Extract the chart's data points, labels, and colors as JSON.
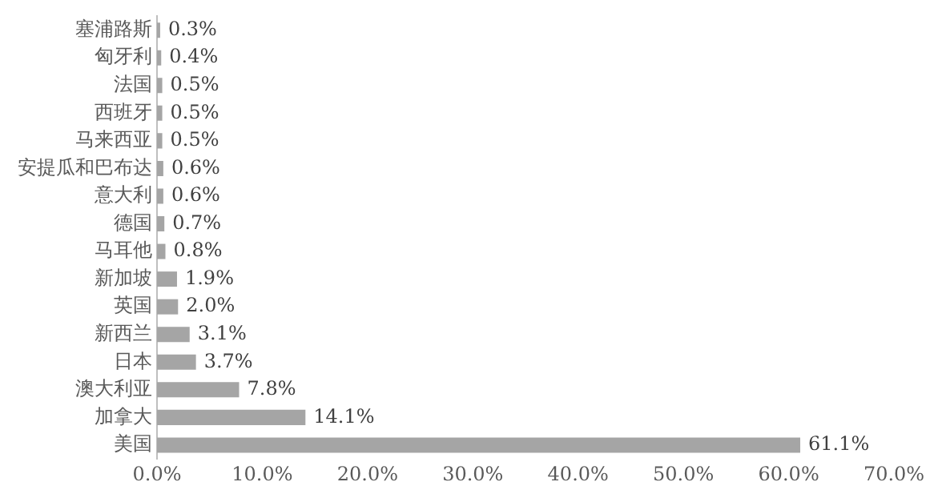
{
  "chart_data": {
    "type": "bar",
    "orientation": "horizontal",
    "categories": [
      "塞浦路斯",
      "匈牙利",
      "法国",
      "西班牙",
      "马来西亚",
      "安提瓜和巴布达",
      "意大利",
      "德国",
      "马耳他",
      "新加坡",
      "英国",
      "新西兰",
      "日本",
      "澳大利亚",
      "加拿大",
      "美国"
    ],
    "values": [
      0.3,
      0.4,
      0.5,
      0.5,
      0.5,
      0.6,
      0.6,
      0.7,
      0.8,
      1.9,
      2.0,
      3.1,
      3.7,
      7.8,
      14.1,
      61.1
    ],
    "value_labels": [
      "0.3%",
      "0.4%",
      "0.5%",
      "0.5%",
      "0.5%",
      "0.6%",
      "0.6%",
      "0.7%",
      "0.8%",
      "1.9%",
      "2.0%",
      "3.1%",
      "3.7%",
      "7.8%",
      "14.1%",
      "61.1%"
    ],
    "color": "#a5a5a5",
    "xlim": [
      0,
      70
    ],
    "xticks": [
      {
        "value": 0,
        "label": "0.0%"
      },
      {
        "value": 10,
        "label": "10.0%"
      },
      {
        "value": 20,
        "label": "20.0%"
      },
      {
        "value": 30,
        "label": "30.0%"
      },
      {
        "value": 40,
        "label": "40.0%"
      },
      {
        "value": 50,
        "label": "50.0%"
      },
      {
        "value": 60,
        "label": "60.0%"
      },
      {
        "value": 70,
        "label": "70.0%"
      }
    ],
    "grid": false,
    "legend": false
  }
}
